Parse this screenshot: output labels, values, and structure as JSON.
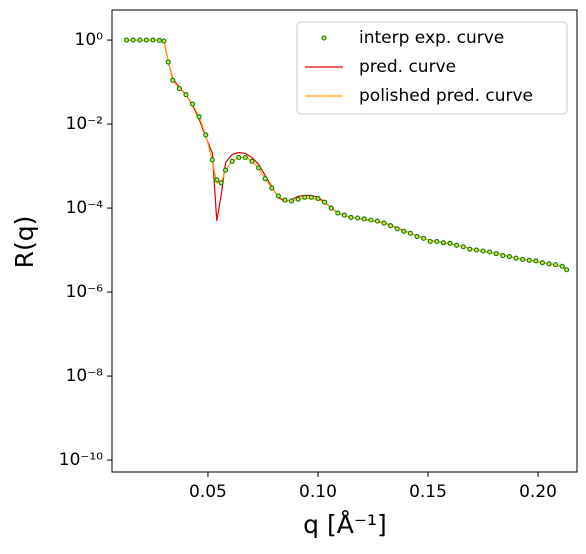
{
  "chart_data": {
    "type": "line",
    "log_y": true,
    "legend": "upper right",
    "xlabel": "q [Å⁻¹]",
    "ylabel": "R(q)",
    "xlim": [
      0.0064,
      0.2177
    ],
    "xticks": [
      0.05,
      0.1,
      0.15,
      0.2
    ],
    "xtick_labels": [
      "0.05",
      "0.10",
      "0.15",
      "0.20"
    ],
    "ylim": [
      5.2e-11,
      5.2
    ],
    "yticks": [
      {
        "value": 1,
        "label": "10⁰"
      },
      {
        "value": 0.01,
        "label": "10⁻²"
      },
      {
        "value": 0.0001,
        "label": "10⁻⁴"
      },
      {
        "value": 1e-06,
        "label": "10⁻⁶"
      },
      {
        "value": 1e-08,
        "label": "10⁻⁸"
      },
      {
        "value": 1e-10,
        "label": "10⁻¹⁰"
      }
    ],
    "x": [
      0.013,
      0.016,
      0.019,
      0.022,
      0.025,
      0.028,
      0.03,
      0.032,
      0.034,
      0.037,
      0.04,
      0.043,
      0.046,
      0.049,
      0.052,
      0.054,
      0.056,
      0.058,
      0.061,
      0.064,
      0.067,
      0.07,
      0.073,
      0.076,
      0.079,
      0.082,
      0.085,
      0.088,
      0.091,
      0.094,
      0.097,
      0.1,
      0.103,
      0.106,
      0.109,
      0.112,
      0.115,
      0.118,
      0.121,
      0.124,
      0.127,
      0.13,
      0.133,
      0.136,
      0.139,
      0.142,
      0.145,
      0.148,
      0.151,
      0.154,
      0.157,
      0.16,
      0.163,
      0.166,
      0.169,
      0.172,
      0.175,
      0.178,
      0.181,
      0.184,
      0.187,
      0.19,
      0.193,
      0.196,
      0.199,
      0.202,
      0.205,
      0.208,
      0.211,
      0.213
    ],
    "series": [
      {
        "name": "interp exp. curve",
        "type": "scatter",
        "color": "green",
        "fill": "#d4e157",
        "values": [
          1,
          1,
          1,
          1,
          1,
          0.98,
          0.95,
          0.3,
          0.11,
          0.07,
          0.05,
          0.03,
          0.015,
          0.0055,
          0.0014,
          0.00047,
          0.0004,
          0.0008,
          0.0013,
          0.0016,
          0.0016,
          0.0013,
          0.0009,
          0.0005,
          0.0003,
          0.000195,
          0.000155,
          0.000148,
          0.000163,
          0.00018,
          0.00018,
          0.00017,
          0.000138,
          0.0001,
          7.6e-05,
          6.8e-05,
          6e-05,
          5.8e-05,
          5.5e-05,
          5.2e-05,
          4.9e-05,
          4.4e-05,
          3.8e-05,
          3.2e-05,
          2.8e-05,
          2.5e-05,
          2.1e-05,
          1.9e-05,
          1.6e-05,
          1.6e-05,
          1.5e-05,
          1.45e-05,
          1.3e-05,
          1.2e-05,
          1.05e-05,
          1e-05,
          9.5e-06,
          9e-06,
          8.2e-06,
          7.4e-06,
          7e-06,
          6.4e-06,
          6e-06,
          5.7e-06,
          5.5e-06,
          5e-06,
          4.7e-06,
          4.5e-06,
          4.1e-06,
          3.4e-06
        ]
      },
      {
        "name": "pred. curve",
        "type": "line",
        "color": "#e00000",
        "values": [
          1,
          1,
          1,
          1,
          1,
          1,
          0.97,
          0.3,
          0.12,
          0.075,
          0.05,
          0.028,
          0.013,
          0.005,
          0.002,
          5e-05,
          0.0002,
          0.0012,
          0.0019,
          0.0021,
          0.002,
          0.0016,
          0.0011,
          0.0006,
          0.00032,
          0.00018,
          0.00014,
          0.00016,
          0.00019,
          0.0002,
          0.0002,
          0.00018,
          0.00014,
          0.0001,
          7.8e-05,
          6.6e-05,
          6e-05,
          5.7e-05,
          5.4e-05,
          5.1e-05,
          4.8e-05,
          4.4e-05,
          3.9e-05,
          3.4e-05,
          2.9e-05,
          2.5e-05,
          2.2e-05,
          1.9e-05,
          1.7e-05,
          1.6e-05,
          1.5e-05,
          1.4e-05,
          1.3e-05,
          1.2e-05,
          1.1e-05,
          1e-05,
          9.5e-06,
          8.9e-06,
          8.3e-06,
          7.6e-06,
          7e-06,
          6.5e-06,
          6.1e-06,
          5.7e-06,
          5.4e-06,
          5e-06,
          4.7e-06,
          4.4e-06,
          4.1e-06,
          3.6e-06
        ]
      },
      {
        "name": "polished pred. curve",
        "type": "line",
        "color": "orange",
        "values": [
          1,
          1,
          1,
          1,
          1,
          1,
          0.96,
          0.3,
          0.11,
          0.07,
          0.05,
          0.03,
          0.015,
          0.0055,
          0.0013,
          0.0004,
          0.0004,
          0.0008,
          0.0013,
          0.0016,
          0.0016,
          0.0013,
          0.0009,
          0.0005,
          0.0003,
          0.00019,
          0.00015,
          0.00015,
          0.00016,
          0.00017,
          0.00017,
          0.00016,
          0.000135,
          0.0001,
          7.6e-05,
          6.6e-05,
          6e-05,
          5.6e-05,
          5.3e-05,
          5e-05,
          4.7e-05,
          4.3e-05,
          3.8e-05,
          3.3e-05,
          2.8e-05,
          2.5e-05,
          2.2e-05,
          1.9e-05,
          1.7e-05,
          1.6e-05,
          1.5e-05,
          1.4e-05,
          1.3e-05,
          1.2e-05,
          1.1e-05,
          1e-05,
          9.4e-06,
          8.8e-06,
          8.2e-06,
          7.5e-06,
          7e-06,
          6.5e-06,
          6e-06,
          5.7e-06,
          5.3e-06,
          5e-06,
          4.7e-06,
          4.4e-06,
          4.1e-06,
          3.5e-06
        ]
      }
    ]
  }
}
